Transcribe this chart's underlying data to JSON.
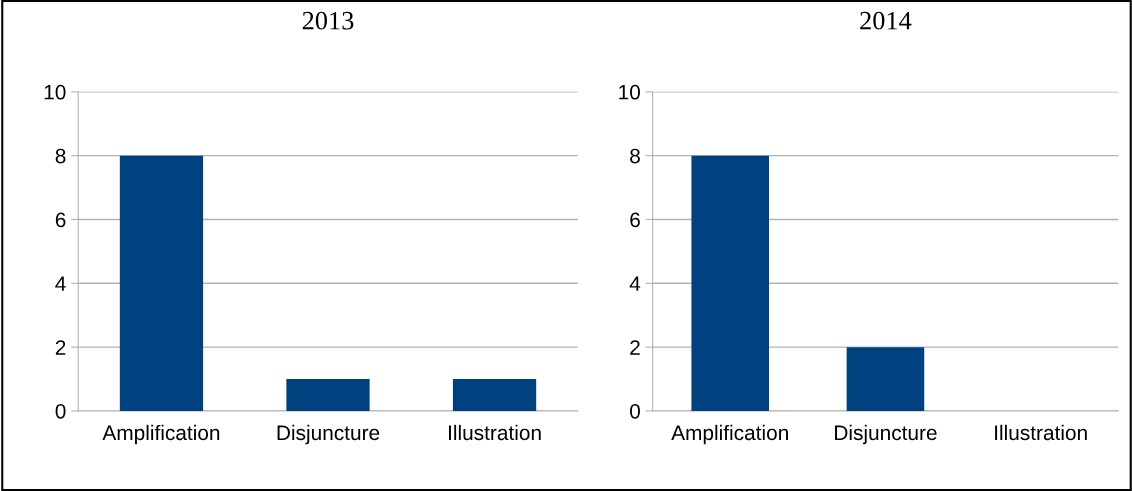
{
  "chart_data": [
    {
      "type": "bar",
      "title": "2013",
      "categories": [
        "Amplification",
        "Disjuncture",
        "Illustration"
      ],
      "values": [
        8,
        1,
        1
      ],
      "color": "#00427f",
      "ylim": [
        0,
        10
      ],
      "yticks": [
        0,
        2,
        4,
        6,
        8,
        10
      ],
      "grid": "y"
    },
    {
      "type": "bar",
      "title": "2014",
      "categories": [
        "Amplification",
        "Disjuncture",
        "Illustration"
      ],
      "values": [
        8,
        2,
        0
      ],
      "color": "#00427f",
      "ylim": [
        0,
        10
      ],
      "yticks": [
        0,
        2,
        4,
        6,
        8,
        10
      ],
      "grid": "y"
    }
  ]
}
